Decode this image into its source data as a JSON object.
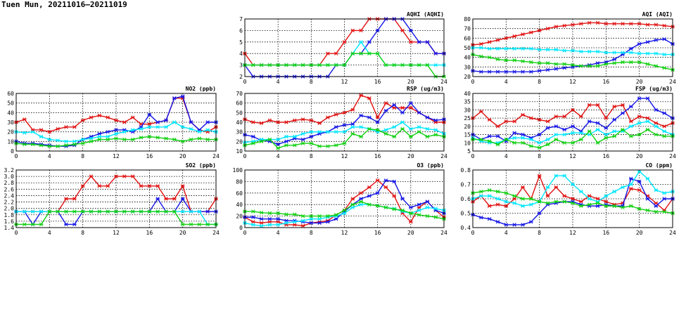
{
  "page_title": "Tuen Mun, 20211016–20211019",
  "colors": {
    "red": "#e01010",
    "blue": "#1414e6",
    "cyan": "#00e6ff",
    "green": "#10d010",
    "grid": "#000000"
  },
  "chart_data": [
    {
      "type": "line",
      "title": "AQHI (AQHI)",
      "xlim": [
        0,
        24
      ],
      "ylim": [
        2,
        7
      ],
      "xticks": [
        0,
        4,
        8,
        12,
        16,
        20,
        24
      ],
      "yticks": [
        2,
        3,
        4,
        5,
        6,
        7
      ],
      "series": [
        {
          "color": "red",
          "values": [
            4,
            3,
            3,
            3,
            3,
            3,
            3,
            3,
            3,
            3,
            4,
            4,
            5,
            6,
            6,
            7,
            7,
            7,
            7,
            6,
            5,
            5,
            5,
            4,
            4
          ]
        },
        {
          "color": "blue",
          "values": [
            3,
            2,
            2,
            2,
            2,
            2,
            2,
            2,
            2,
            2,
            2,
            3,
            3,
            4,
            4,
            5,
            6,
            7,
            7,
            7,
            6,
            5,
            5,
            4,
            4
          ]
        },
        {
          "color": "cyan",
          "values": [
            3,
            3,
            3,
            3,
            3,
            3,
            3,
            3,
            3,
            3,
            3,
            3,
            3,
            4,
            5,
            4,
            4,
            3,
            3,
            3,
            3,
            3,
            3,
            3,
            3
          ]
        },
        {
          "color": "green",
          "values": [
            3,
            3,
            3,
            3,
            3,
            3,
            3,
            3,
            3,
            3,
            3,
            3,
            3,
            4,
            4,
            4,
            4,
            3,
            3,
            3,
            3,
            3,
            3,
            2,
            2
          ]
        }
      ]
    },
    {
      "type": "line",
      "title": "AQI (AQI)",
      "xlim": [
        0,
        24
      ],
      "ylim": [
        20,
        80
      ],
      "xticks": [
        0,
        4,
        8,
        12,
        16,
        20,
        24
      ],
      "yticks": [
        20,
        30,
        40,
        50,
        60,
        70,
        80
      ],
      "series": [
        {
          "color": "red",
          "values": [
            53,
            54,
            56,
            58,
            60,
            62,
            64,
            66,
            68,
            70,
            72,
            73,
            74,
            75,
            76,
            76,
            75,
            75,
            75,
            75,
            75,
            74,
            74,
            73,
            72
          ]
        },
        {
          "color": "blue",
          "values": [
            26,
            25,
            25,
            25,
            25,
            25,
            25,
            25,
            26,
            27,
            28,
            29,
            30,
            31,
            32,
            34,
            35,
            38,
            43,
            49,
            54,
            56,
            58,
            59,
            54
          ]
        },
        {
          "color": "cyan",
          "values": [
            50,
            50,
            49,
            49,
            49,
            49,
            49,
            49,
            48,
            48,
            48,
            47,
            47,
            46,
            46,
            46,
            45,
            45,
            45,
            45,
            44,
            44,
            44,
            43,
            43
          ]
        },
        {
          "color": "green",
          "values": [
            43,
            41,
            40,
            38,
            37,
            37,
            36,
            35,
            34,
            34,
            33,
            33,
            32,
            31,
            31,
            31,
            33,
            34,
            35,
            35,
            35,
            33,
            31,
            29,
            27
          ]
        }
      ]
    },
    {
      "type": "line",
      "title": "NO2 (ppb)",
      "xlim": [
        0,
        24
      ],
      "ylim": [
        0,
        60
      ],
      "xticks": [
        0,
        4,
        8,
        12,
        16,
        20,
        24
      ],
      "yticks": [
        0,
        10,
        20,
        30,
        40,
        50,
        60
      ],
      "series": [
        {
          "color": "red",
          "values": [
            30,
            33,
            22,
            22,
            20,
            23,
            25,
            25,
            32,
            35,
            37,
            35,
            32,
            30,
            35,
            28,
            28,
            30,
            32,
            55,
            55,
            30,
            22,
            20,
            25
          ]
        },
        {
          "color": "blue",
          "values": [
            10,
            8,
            8,
            7,
            6,
            5,
            5,
            6,
            12,
            15,
            18,
            20,
            22,
            22,
            20,
            25,
            38,
            30,
            32,
            55,
            57,
            30,
            22,
            30,
            30
          ]
        },
        {
          "color": "cyan",
          "values": [
            20,
            19,
            20,
            15,
            12,
            11,
            10,
            10,
            12,
            13,
            15,
            15,
            18,
            20,
            22,
            23,
            25,
            25,
            25,
            30,
            25,
            23,
            20,
            22,
            20
          ]
        },
        {
          "color": "green",
          "values": [
            8,
            7,
            7,
            6,
            5,
            5,
            6,
            7,
            8,
            10,
            12,
            12,
            13,
            12,
            12,
            14,
            15,
            14,
            13,
            12,
            10,
            12,
            13,
            12,
            12
          ]
        }
      ]
    },
    {
      "type": "line",
      "title": "RSP (ug/m3)",
      "xlim": [
        0,
        24
      ],
      "ylim": [
        10,
        70
      ],
      "xticks": [
        0,
        4,
        8,
        12,
        16,
        20,
        24
      ],
      "yticks": [
        10,
        20,
        30,
        40,
        50,
        60,
        70
      ],
      "series": [
        {
          "color": "red",
          "values": [
            43,
            40,
            39,
            42,
            40,
            40,
            42,
            43,
            42,
            39,
            45,
            48,
            50,
            53,
            68,
            65,
            45,
            60,
            55,
            55,
            55,
            50,
            45,
            40,
            40
          ]
        },
        {
          "color": "blue",
          "values": [
            27,
            25,
            21,
            20,
            17,
            20,
            23,
            22,
            25,
            28,
            30,
            35,
            37,
            38,
            47,
            45,
            40,
            52,
            58,
            50,
            60,
            50,
            45,
            42,
            43
          ]
        },
        {
          "color": "cyan",
          "values": [
            19,
            20,
            22,
            22,
            22,
            25,
            25,
            28,
            30,
            30,
            30,
            30,
            30,
            35,
            35,
            33,
            30,
            32,
            35,
            40,
            33,
            35,
            33,
            32,
            28
          ]
        },
        {
          "color": "green",
          "values": [
            16,
            18,
            20,
            22,
            13,
            16,
            16,
            18,
            18,
            15,
            15,
            16,
            18,
            28,
            25,
            33,
            32,
            28,
            25,
            33,
            25,
            30,
            25,
            27,
            25
          ]
        }
      ]
    },
    {
      "type": "line",
      "title": "FSP (ug/m3)",
      "xlim": [
        0,
        24
      ],
      "ylim": [
        5,
        40
      ],
      "xticks": [
        0,
        4,
        8,
        12,
        16,
        20,
        24
      ],
      "yticks": [
        5,
        10,
        15,
        20,
        25,
        30,
        35,
        40
      ],
      "series": [
        {
          "color": "red",
          "values": [
            25,
            29,
            24,
            20,
            23,
            23,
            27,
            25,
            24,
            23,
            26,
            26,
            30,
            26,
            33,
            33,
            25,
            32,
            33,
            23,
            26,
            25,
            22,
            20,
            22
          ]
        },
        {
          "color": "blue",
          "values": [
            15,
            12,
            14,
            14,
            11,
            16,
            15,
            13,
            15,
            19,
            20,
            18,
            20,
            17,
            23,
            22,
            19,
            24,
            28,
            32,
            37,
            37,
            30,
            28,
            25
          ]
        },
        {
          "color": "cyan",
          "values": [
            13,
            11,
            10,
            10,
            12,
            13,
            13,
            12,
            10,
            12,
            15,
            15,
            16,
            16,
            15,
            18,
            15,
            17,
            17,
            20,
            22,
            23,
            20,
            17,
            15
          ]
        },
        {
          "color": "green",
          "values": [
            12,
            12,
            11,
            9,
            12,
            10,
            10,
            8,
            7,
            9,
            12,
            10,
            10,
            12,
            17,
            10,
            13,
            14,
            18,
            14,
            15,
            18,
            15,
            14,
            14
          ]
        }
      ]
    },
    {
      "type": "line",
      "title": "SO2 (ppb)",
      "xlim": [
        0,
        24
      ],
      "ylim": [
        1.4,
        3.2
      ],
      "xticks": [
        0,
        4,
        8,
        12,
        16,
        20,
        24
      ],
      "yticks": [
        1.4,
        1.6,
        1.8,
        2.0,
        2.2,
        2.4,
        2.6,
        2.8,
        3.0,
        3.2
      ],
      "series": [
        {
          "color": "red",
          "values": [
            1.9,
            1.9,
            1.9,
            1.9,
            1.9,
            1.9,
            2.3,
            2.3,
            2.7,
            3.0,
            2.7,
            2.7,
            3.0,
            3.0,
            3.0,
            2.7,
            2.7,
            2.7,
            2.3,
            2.3,
            2.7,
            1.9,
            1.9,
            1.9,
            2.3
          ]
        },
        {
          "color": "blue",
          "values": [
            1.9,
            1.9,
            1.5,
            1.9,
            1.9,
            1.9,
            1.5,
            1.5,
            1.9,
            1.9,
            1.9,
            1.9,
            1.9,
            1.9,
            1.9,
            1.9,
            1.9,
            2.3,
            1.9,
            1.9,
            2.3,
            1.9,
            1.9,
            1.9,
            1.9
          ]
        },
        {
          "color": "cyan",
          "values": [
            1.9,
            1.9,
            1.9,
            1.9,
            1.9,
            1.9,
            1.9,
            1.9,
            1.9,
            1.9,
            1.9,
            1.9,
            1.9,
            1.9,
            1.9,
            1.9,
            1.9,
            1.9,
            1.9,
            1.9,
            1.9,
            1.9,
            1.9,
            1.5,
            1.5
          ]
        },
        {
          "color": "green",
          "values": [
            1.5,
            1.5,
            1.5,
            1.5,
            1.9,
            1.9,
            1.9,
            1.9,
            1.9,
            1.9,
            1.9,
            1.9,
            1.9,
            1.9,
            1.9,
            1.9,
            1.9,
            1.9,
            1.9,
            1.9,
            1.5,
            1.5,
            1.5,
            1.5,
            1.5
          ]
        }
      ]
    },
    {
      "type": "line",
      "title": "O3 (ppb)",
      "xlim": [
        0,
        24
      ],
      "ylim": [
        0,
        100
      ],
      "xticks": [
        0,
        4,
        8,
        12,
        16,
        20,
        24
      ],
      "yticks": [
        0,
        20,
        40,
        60,
        80,
        100
      ],
      "series": [
        {
          "color": "red",
          "values": [
            18,
            10,
            8,
            10,
            10,
            5,
            5,
            3,
            8,
            10,
            12,
            22,
            30,
            50,
            60,
            70,
            82,
            70,
            55,
            25,
            10,
            35,
            45,
            30,
            18
          ]
        },
        {
          "color": "blue",
          "values": [
            18,
            18,
            15,
            15,
            15,
            12,
            12,
            10,
            8,
            8,
            10,
            15,
            28,
            40,
            50,
            55,
            60,
            82,
            80,
            50,
            35,
            40,
            45,
            30,
            25
          ]
        },
        {
          "color": "cyan",
          "values": [
            8,
            5,
            3,
            5,
            5,
            8,
            10,
            12,
            15,
            15,
            18,
            20,
            25,
            35,
            40,
            40,
            38,
            35,
            33,
            28,
            25,
            30,
            35,
            33,
            30
          ]
        },
        {
          "color": "green",
          "values": [
            28,
            28,
            26,
            25,
            25,
            23,
            23,
            20,
            20,
            20,
            20,
            22,
            30,
            40,
            45,
            40,
            38,
            35,
            32,
            30,
            25,
            22,
            20,
            18,
            15
          ]
        }
      ]
    },
    {
      "type": "line",
      "title": "CO (ppm)",
      "xlim": [
        0,
        24
      ],
      "ylim": [
        0.4,
        0.8
      ],
      "xticks": [
        0,
        4,
        8,
        12,
        16,
        20,
        24
      ],
      "yticks": [
        0.4,
        0.5,
        0.6,
        0.7,
        0.8
      ],
      "series": [
        {
          "color": "red",
          "values": [
            0.58,
            0.62,
            0.55,
            0.56,
            0.55,
            0.6,
            0.68,
            0.6,
            0.76,
            0.62,
            0.68,
            0.62,
            0.6,
            0.58,
            0.62,
            0.6,
            0.58,
            0.56,
            0.57,
            0.67,
            0.66,
            0.62,
            0.57,
            0.52,
            0.6
          ]
        },
        {
          "color": "blue",
          "values": [
            0.49,
            0.47,
            0.46,
            0.44,
            0.42,
            0.42,
            0.42,
            0.44,
            0.5,
            0.56,
            0.57,
            0.58,
            0.58,
            0.56,
            0.55,
            0.55,
            0.56,
            0.55,
            0.55,
            0.74,
            0.72,
            0.6,
            0.55,
            0.6,
            0.6
          ]
        },
        {
          "color": "cyan",
          "values": [
            0.6,
            0.62,
            0.62,
            0.6,
            0.58,
            0.57,
            0.55,
            0.56,
            0.58,
            0.68,
            0.76,
            0.76,
            0.7,
            0.65,
            0.6,
            0.58,
            0.62,
            0.65,
            0.68,
            0.7,
            0.79,
            0.74,
            0.66,
            0.64,
            0.65
          ]
        },
        {
          "color": "green",
          "values": [
            0.64,
            0.65,
            0.66,
            0.65,
            0.64,
            0.62,
            0.6,
            0.6,
            0.58,
            0.57,
            0.58,
            0.58,
            0.57,
            0.55,
            0.56,
            0.57,
            0.55,
            0.55,
            0.54,
            0.55,
            0.53,
            0.52,
            0.51,
            0.51,
            0.5
          ]
        }
      ]
    }
  ]
}
